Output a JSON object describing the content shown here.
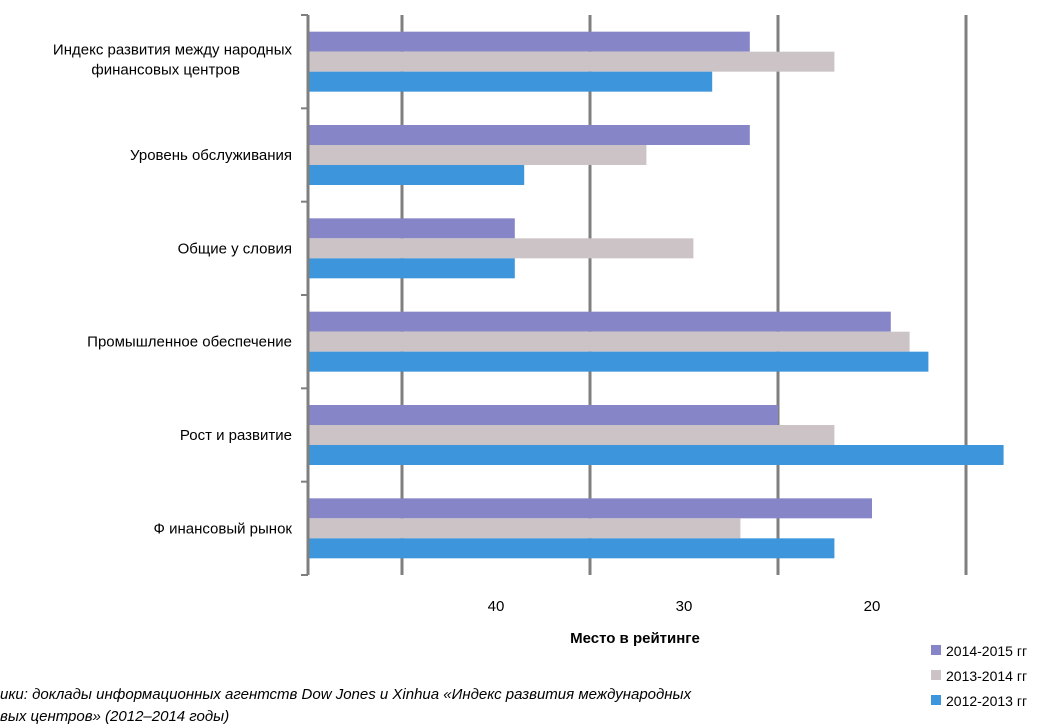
{
  "chart_data": {
    "type": "bar",
    "orientation": "horizontal",
    "x_reversed": true,
    "categories": [
      "Индекс развития между народных финансовых центров",
      "Уровень обслуживания",
      "Общие у словия",
      "Промышленное обеспечение",
      "Рост и развитие",
      "Ф инансовый рынок"
    ],
    "series": [
      {
        "name": "2014-2015 гг",
        "color": "#8585c8",
        "values": [
          26.5,
          26.5,
          39.0,
          19.0,
          25.0,
          20.0
        ]
      },
      {
        "name": "2013-2014 гг",
        "color": "#cbc3c5",
        "values": [
          22.0,
          32.0,
          29.5,
          18.0,
          22.0,
          27.0
        ]
      },
      {
        "name": "2012-2013 гг",
        "color": "#3d96dc",
        "values": [
          28.5,
          38.5,
          39.0,
          17.0,
          13.0,
          22.0
        ]
      }
    ],
    "xlabel": "Место в рейтинге",
    "ylabel": "",
    "title": "",
    "xlim": [
      50,
      10
    ],
    "x_ticks": [
      40,
      30,
      20,
      10
    ],
    "grid": true,
    "legend_position": "bottom-right"
  },
  "source_note": {
    "line1": "ики: доклады информационных агентств Dow Jones и Xinhua «Индекс развития международных",
    "line2": "вых центров» (2012–2014 годы)"
  }
}
